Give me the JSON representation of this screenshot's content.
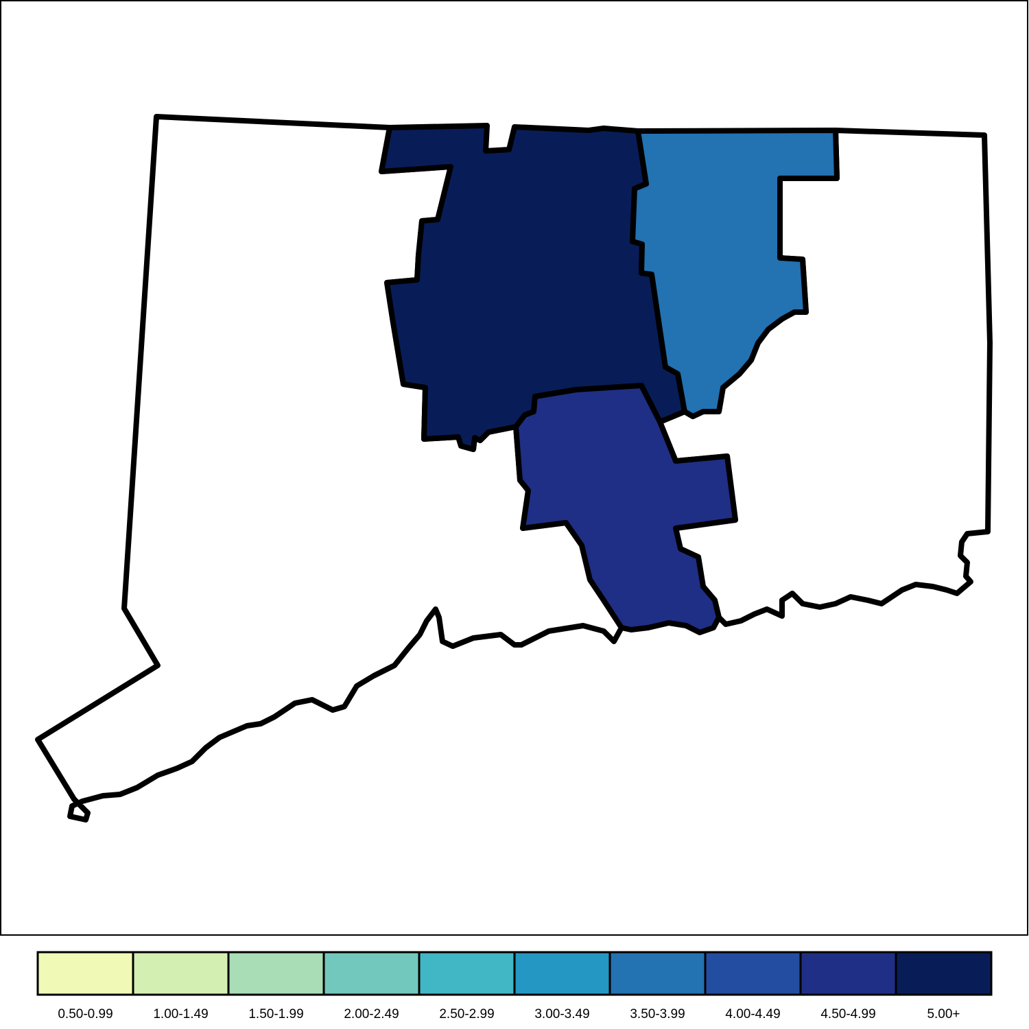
{
  "map": {
    "regions": [
      {
        "id": "west",
        "color": "#ffffff"
      },
      {
        "id": "east",
        "color": "#ffffff"
      },
      {
        "id": "north-central",
        "color": "#081d58"
      },
      {
        "id": "north-east-central",
        "color": "#2372b2"
      },
      {
        "id": "south-central",
        "color": "#1f2f86"
      }
    ]
  },
  "legend": {
    "bins": [
      {
        "label": "0.50-0.99",
        "color": "#f0f9b6"
      },
      {
        "label": "1.00-1.49",
        "color": "#d4efb2"
      },
      {
        "label": "1.50-1.99",
        "color": "#a9ddb6"
      },
      {
        "label": "2.00-2.49",
        "color": "#73c8bd"
      },
      {
        "label": "2.50-2.99",
        "color": "#41b6c4"
      },
      {
        "label": "3.00-3.49",
        "color": "#2498c2"
      },
      {
        "label": "3.50-3.99",
        "color": "#2372b2"
      },
      {
        "label": "4.00-4.49",
        "color": "#234da0"
      },
      {
        "label": "4.50-4.99",
        "color": "#202f86"
      },
      {
        "label": "5.00+",
        "color": "#081d58"
      }
    ]
  }
}
